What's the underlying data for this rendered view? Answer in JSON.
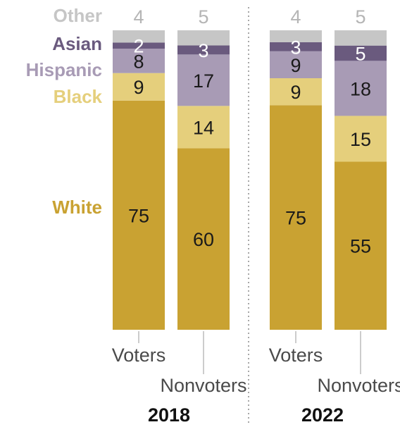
{
  "chart_data": {
    "type": "bar",
    "stacked": true,
    "ylim": [
      0,
      100
    ],
    "groups": [
      {
        "year": "2018",
        "categories": [
          "Voters",
          "Nonvoters"
        ]
      },
      {
        "year": "2022",
        "categories": [
          "Voters",
          "Nonvoters"
        ]
      }
    ],
    "series": [
      {
        "name": "White",
        "color": "#c9a232",
        "label_color": "#1a1a1a",
        "values": [
          75,
          60,
          75,
          55
        ]
      },
      {
        "name": "Black",
        "color": "#e5cf7c",
        "label_color": "#1a1a1a",
        "values": [
          9,
          14,
          9,
          15
        ]
      },
      {
        "name": "Hispanic",
        "color": "#a89bb5",
        "label_color": "#1a1a1a",
        "values": [
          8,
          17,
          9,
          18
        ]
      },
      {
        "name": "Asian",
        "color": "#6a5a7e",
        "label_color": "#ffffff",
        "values": [
          2,
          3,
          3,
          5
        ]
      },
      {
        "name": "Other",
        "color": "#c6c6c6",
        "label_color": "#b5b5b5",
        "values": [
          4,
          5,
          4,
          5
        ]
      }
    ],
    "legend_colors": {
      "White": "#c9a232",
      "Black": "#e5cf7c",
      "Hispanic": "#a89bb5",
      "Asian": "#6a5a7e",
      "Other": "#c6c6c6"
    },
    "grid": false,
    "legend_position": "left-inline"
  }
}
